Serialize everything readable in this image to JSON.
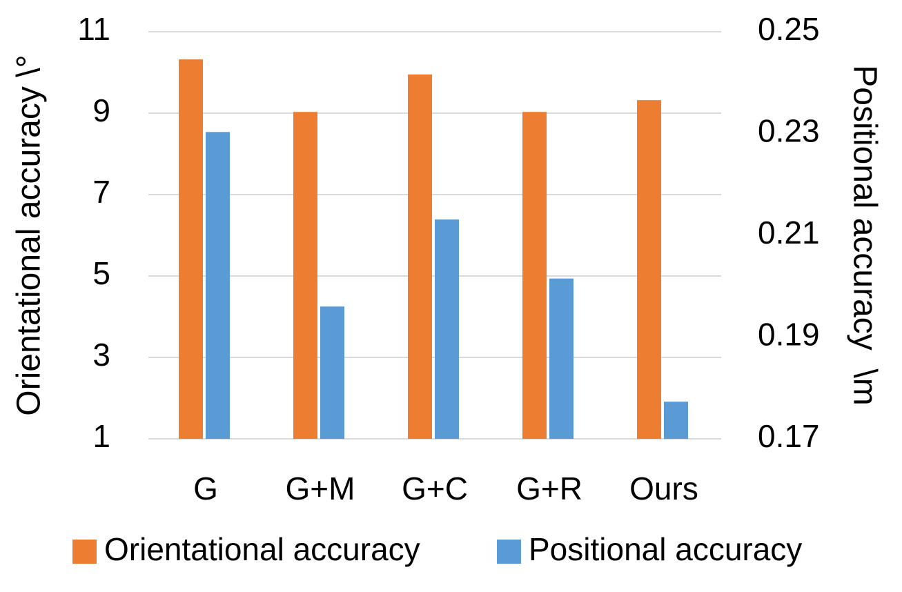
{
  "chart_data": {
    "type": "bar",
    "categories": [
      "G",
      "G+M",
      "G+C",
      "G+R",
      "Ours"
    ],
    "series": [
      {
        "name": "Orientational accuracy",
        "color": "#ed7d31",
        "values": [
          10.32,
          9.03,
          9.95,
          9.03,
          9.32
        ]
      },
      {
        "name": "Positional accuracy",
        "color": "#5b9bd5",
        "axis": "y2",
        "values": [
          0.2303,
          0.196,
          0.2131,
          0.2015,
          0.1773
        ]
      }
    ],
    "ylabel": "Orientational accuracy \\°",
    "y2label": "Positional accuracy  \\m",
    "ylim": [
      1,
      11
    ],
    "yticks": [
      1,
      3,
      5,
      7,
      9,
      11
    ],
    "y2lim": [
      0.17,
      0.25
    ],
    "y2ticks": [
      0.17,
      0.19,
      0.21,
      0.23,
      0.25
    ],
    "grid": true,
    "legend": "bottom"
  }
}
